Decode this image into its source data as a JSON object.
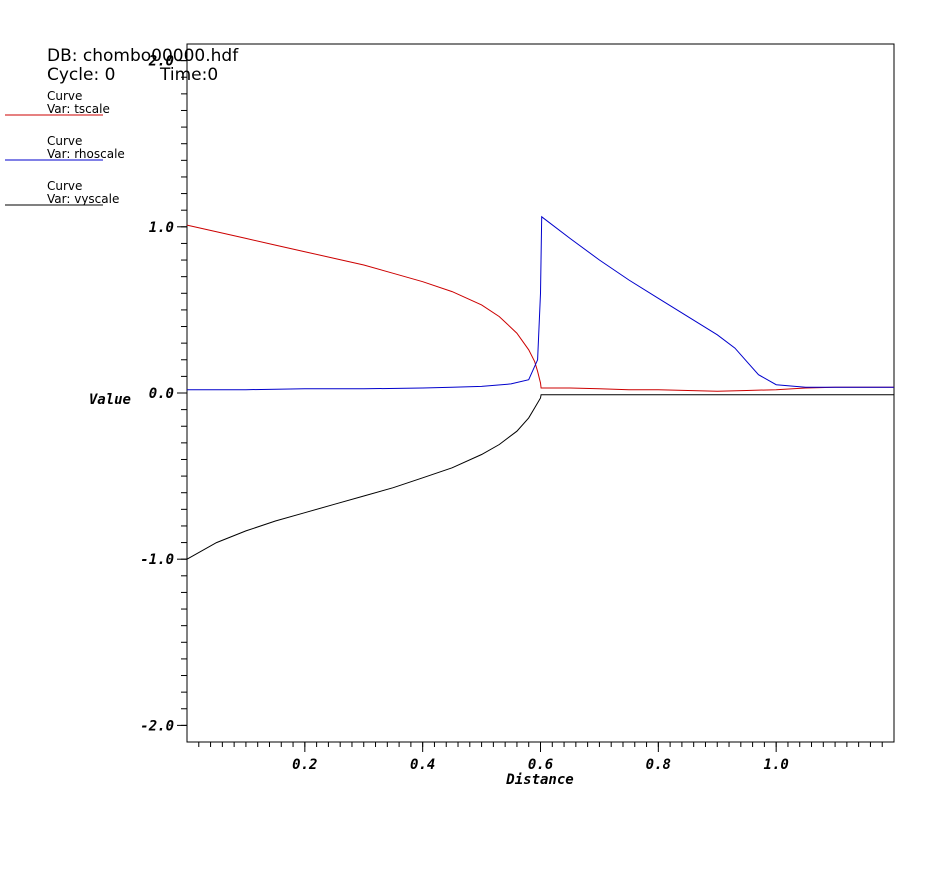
{
  "header": {
    "db_label": "DB: chombo00000.hdf",
    "cycle_label": "Cycle: 0",
    "time_label": "Time:0"
  },
  "legend": [
    {
      "title": "Curve",
      "var": "Var: tscale",
      "color": "#cc0000"
    },
    {
      "title": "Curve",
      "var": "Var: rhoscale",
      "color": "#0000cc"
    },
    {
      "title": "Curve",
      "var": "Var: vyscale",
      "color": "#000000"
    }
  ],
  "chart_data": {
    "type": "line",
    "xlabel": "Distance",
    "ylabel": "Value",
    "xlim": [
      0.0,
      1.2
    ],
    "ylim": [
      -2.1,
      2.1
    ],
    "x_ticks": [
      {
        "value": 0.2,
        "label": "0.2"
      },
      {
        "value": 0.4,
        "label": "0.4"
      },
      {
        "value": 0.6,
        "label": "0.6"
      },
      {
        "value": 0.8,
        "label": "0.8"
      },
      {
        "value": 1.0,
        "label": "1.0"
      }
    ],
    "y_ticks": [
      {
        "value": 2.0,
        "label": "2.0"
      },
      {
        "value": 1.0,
        "label": "1.0"
      },
      {
        "value": 0.0,
        "label": "0.0"
      },
      {
        "value": -1.0,
        "label": "-1.0"
      },
      {
        "value": -2.0,
        "label": "-2.0"
      }
    ],
    "grid": false,
    "legend_position": "top-left",
    "series": [
      {
        "name": "tscale",
        "color": "#cc0000",
        "x": [
          0.0,
          0.05,
          0.1,
          0.15,
          0.2,
          0.25,
          0.3,
          0.35,
          0.4,
          0.45,
          0.5,
          0.53,
          0.56,
          0.58,
          0.59,
          0.595,
          0.6,
          0.601,
          0.65,
          0.7,
          0.75,
          0.8,
          0.85,
          0.9,
          0.95,
          1.0,
          1.05,
          1.1,
          1.15,
          1.2
        ],
        "y": [
          1.01,
          0.97,
          0.93,
          0.89,
          0.85,
          0.81,
          0.77,
          0.72,
          0.67,
          0.61,
          0.53,
          0.46,
          0.36,
          0.26,
          0.19,
          0.13,
          0.06,
          0.03,
          0.03,
          0.025,
          0.02,
          0.02,
          0.015,
          0.01,
          0.015,
          0.02,
          0.03,
          0.035,
          0.035,
          0.035
        ]
      },
      {
        "name": "rhoscale",
        "color": "#0000cc",
        "x": [
          0.0,
          0.1,
          0.2,
          0.3,
          0.4,
          0.45,
          0.5,
          0.55,
          0.58,
          0.595,
          0.6,
          0.602,
          0.65,
          0.7,
          0.75,
          0.8,
          0.85,
          0.9,
          0.93,
          0.95,
          0.97,
          1.0,
          1.05,
          1.1,
          1.15,
          1.2
        ],
        "y": [
          0.02,
          0.02,
          0.025,
          0.025,
          0.03,
          0.035,
          0.04,
          0.055,
          0.08,
          0.2,
          0.6,
          1.06,
          0.93,
          0.8,
          0.68,
          0.57,
          0.46,
          0.35,
          0.27,
          0.19,
          0.11,
          0.05,
          0.035,
          0.035,
          0.035,
          0.035
        ]
      },
      {
        "name": "vyscale",
        "color": "#000000",
        "x": [
          0.0,
          0.05,
          0.1,
          0.15,
          0.2,
          0.25,
          0.3,
          0.35,
          0.4,
          0.45,
          0.5,
          0.53,
          0.56,
          0.58,
          0.59,
          0.6,
          0.601,
          0.65,
          0.7,
          0.8,
          0.9,
          1.0,
          1.1,
          1.2
        ],
        "y": [
          -1.0,
          -0.9,
          -0.83,
          -0.77,
          -0.72,
          -0.67,
          -0.62,
          -0.57,
          -0.51,
          -0.45,
          -0.37,
          -0.31,
          -0.23,
          -0.15,
          -0.09,
          -0.03,
          -0.01,
          -0.01,
          -0.01,
          -0.01,
          -0.01,
          -0.01,
          -0.01,
          -0.01
        ]
      }
    ]
  }
}
